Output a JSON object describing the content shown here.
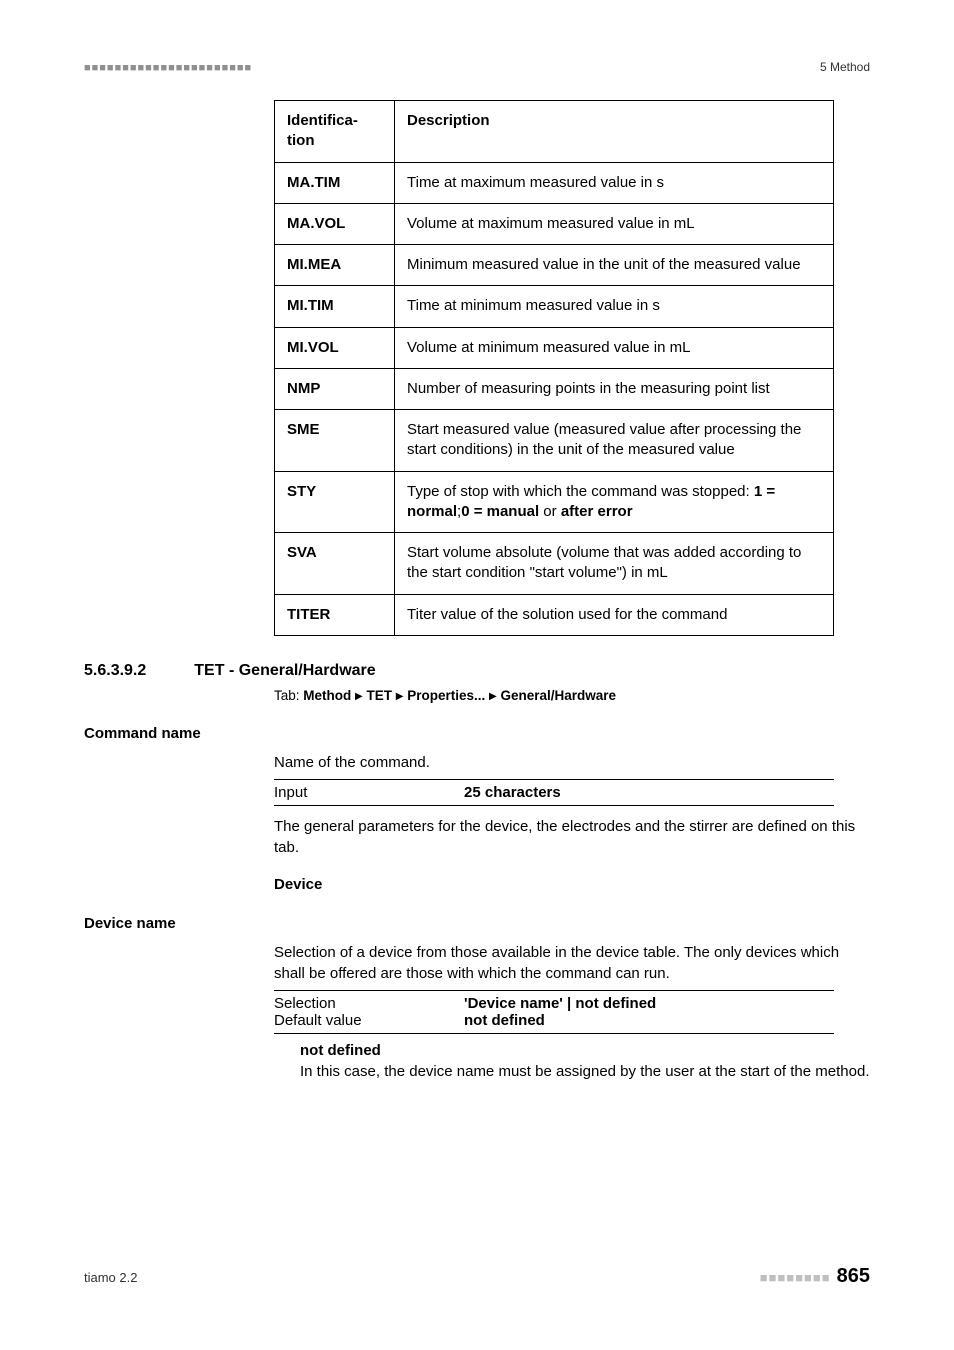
{
  "header": {
    "dotbar": "■■■■■■■■■■■■■■■■■■■■■■",
    "right": "5 Method"
  },
  "spec_table": {
    "head": {
      "c1": "Identifica-\ntion",
      "c2": "Description"
    },
    "rows": [
      {
        "c1": "MA.TIM",
        "c2": "Time at maximum measured value in s"
      },
      {
        "c1": "MA.VOL",
        "c2": "Volume at maximum measured value in mL"
      },
      {
        "c1": "MI.MEA",
        "c2": "Minimum measured value in the unit of the measured value"
      },
      {
        "c1": "MI.TIM",
        "c2": "Time at minimum measured value in s"
      },
      {
        "c1": "MI.VOL",
        "c2": "Volume at minimum measured value in mL"
      },
      {
        "c1": "NMP",
        "c2": "Number of measuring points in the measuring point list"
      },
      {
        "c1": "SME",
        "c2": "Start measured value (measured value after processing the start conditions) in the unit of the measured value"
      },
      {
        "c1": "STY",
        "c2_pre": "Type of stop with which the command was stopped: ",
        "c2_b1": "1 = normal",
        "c2_mid": ";",
        "c2_b2": "0 = manual",
        "c2_mid2": " or ",
        "c2_b3": "after error"
      },
      {
        "c1": "SVA",
        "c2": "Start volume absolute (volume that was added according to the start condition \"start volume\") in mL"
      },
      {
        "c1": "TITER",
        "c2": "Titer value of the solution used for the command"
      }
    ]
  },
  "section": {
    "num": "5.6.3.9.2",
    "title": "TET - General/Hardware",
    "tab_prefix": "Tab: ",
    "tab_path": [
      "Method",
      "TET",
      "Properties...",
      "General/Hardware"
    ]
  },
  "command_name": {
    "label": "Command name",
    "desc": "Name of the command.",
    "input_k": "Input",
    "input_v": "25 characters",
    "after": "The general parameters for the device, the electrodes and the stirrer are defined on this tab."
  },
  "device_section": {
    "heading": "Device",
    "label": "Device name",
    "desc": "Selection of a device from those available in the device table. The only devices which shall be offered are those with which the command can run.",
    "sel_k": "Selection",
    "sel_v": "'Device name' | not defined",
    "def_k": "Default value",
    "def_v": "not defined",
    "nd_term": "not defined",
    "nd_body": "In this case, the device name must be assigned by the user at the start of the method."
  },
  "footer": {
    "left": "tiamo 2.2",
    "dots": "■■■■■■■■",
    "page": "865"
  }
}
